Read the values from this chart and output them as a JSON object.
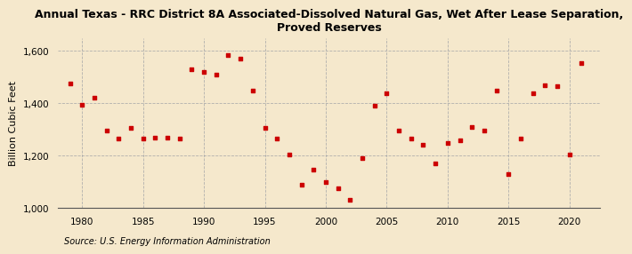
{
  "title": "Annual Texas - RRC District 8A Associated-Dissolved Natural Gas, Wet After Lease Separation,\nProved Reserves",
  "ylabel": "Billion Cubic Feet",
  "source": "Source: U.S. Energy Information Administration",
  "background_color": "#f5e8cc",
  "plot_bg_color": "#f5e8cc",
  "marker_color": "#cc0000",
  "years": [
    1979,
    1980,
    1981,
    1982,
    1983,
    1984,
    1985,
    1986,
    1987,
    1988,
    1989,
    1990,
    1991,
    1992,
    1993,
    1994,
    1995,
    1996,
    1997,
    1998,
    1999,
    2000,
    2001,
    2002,
    2003,
    2004,
    2005,
    2006,
    2007,
    2008,
    2009,
    2010,
    2011,
    2012,
    2013,
    2014,
    2015,
    2016,
    2017,
    2018,
    2019,
    2020,
    2021
  ],
  "values": [
    1475,
    1395,
    1420,
    1295,
    1265,
    1305,
    1265,
    1270,
    1270,
    1265,
    1530,
    1520,
    1510,
    1585,
    1570,
    1450,
    1305,
    1265,
    1205,
    1090,
    1145,
    1100,
    1075,
    1030,
    1190,
    1390,
    1440,
    1295,
    1265,
    1240,
    1170,
    1250,
    1260,
    1310,
    1295,
    1450,
    1130,
    1265,
    1440,
    1470,
    1465,
    1205,
    1555
  ],
  "xlim": [
    1978,
    2022.5
  ],
  "ylim": [
    1000,
    1650
  ],
  "yticks": [
    1000,
    1200,
    1400,
    1600
  ],
  "ytick_labels": [
    "1,000",
    "1,200",
    "1,400",
    "1,600"
  ],
  "xticks": [
    1980,
    1985,
    1990,
    1995,
    2000,
    2005,
    2010,
    2015,
    2020
  ],
  "title_fontsize": 9.0,
  "label_fontsize": 8,
  "tick_fontsize": 7.5,
  "source_fontsize": 7.0,
  "grid_color": "#aaaaaa",
  "grid_linestyle": "--",
  "grid_linewidth": 0.6
}
